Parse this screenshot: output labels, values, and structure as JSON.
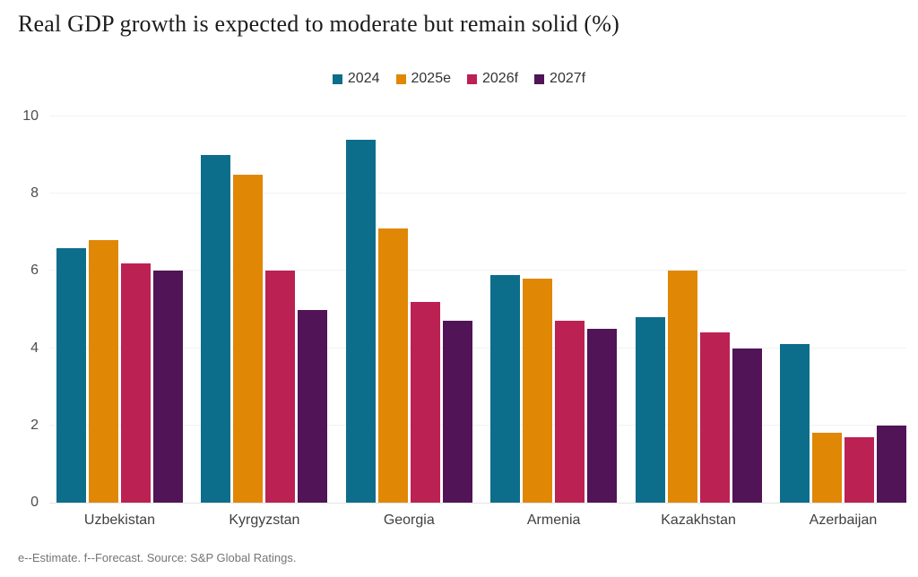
{
  "chart_data": {
    "type": "bar",
    "title": "Real GDP growth is expected to moderate but remain solid (%)",
    "categories": [
      "Uzbekistan",
      "Kyrgyzstan",
      "Georgia",
      "Armenia",
      "Kazakhstan",
      "Azerbaijan"
    ],
    "series": [
      {
        "name": "2024",
        "color": "#0c6e8a",
        "values": [
          6.6,
          9.0,
          9.4,
          5.9,
          4.8,
          4.1
        ]
      },
      {
        "name": "2025e",
        "color": "#e08705",
        "values": [
          6.8,
          8.5,
          7.1,
          5.8,
          6.0,
          1.8
        ]
      },
      {
        "name": "2026f",
        "color": "#bc2153",
        "values": [
          6.2,
          6.0,
          5.2,
          4.7,
          4.4,
          1.7
        ]
      },
      {
        "name": "2027f",
        "color": "#501457",
        "values": [
          6.0,
          5.0,
          4.7,
          4.5,
          4.0,
          2.0
        ]
      }
    ],
    "xlabel": "",
    "ylabel": "",
    "ylim": [
      0,
      10
    ],
    "yticks": [
      0,
      2,
      4,
      6,
      8,
      10
    ],
    "grid": "horizontal",
    "legend_position": "top-center"
  },
  "footnote": "e--Estimate. f--Forecast. Source: S&P Global Ratings."
}
